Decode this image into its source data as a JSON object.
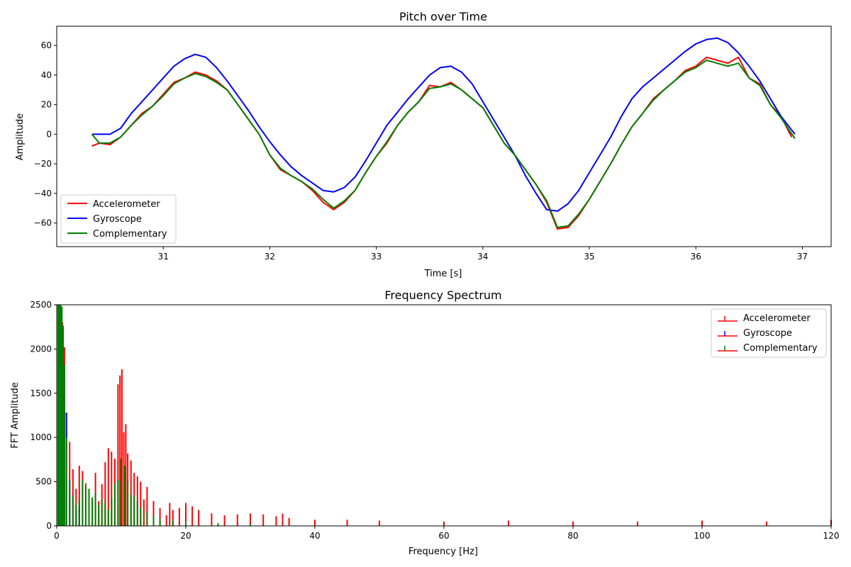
{
  "chart_data": [
    {
      "type": "line",
      "title": "Pitch over Time",
      "xlabel": "Time [s]",
      "ylabel": "Amplitude",
      "xlim": [
        30.0,
        37.27
      ],
      "ylim": [
        -76,
        73
      ],
      "xticks": [
        31,
        32,
        33,
        34,
        35,
        36,
        37
      ],
      "yticks": [
        -60,
        -40,
        -20,
        0,
        20,
        40,
        60
      ],
      "legend_position": "lower-left",
      "grid": false,
      "series": [
        {
          "name": "Accelerometer",
          "color": "#ff0000",
          "x": [
            30.33,
            30.4,
            30.5,
            30.6,
            30.7,
            30.8,
            30.9,
            31.0,
            31.1,
            31.2,
            31.3,
            31.4,
            31.5,
            31.6,
            31.7,
            31.8,
            31.9,
            32.0,
            32.1,
            32.2,
            32.3,
            32.4,
            32.5,
            32.6,
            32.7,
            32.8,
            32.9,
            33.0,
            33.1,
            33.2,
            33.3,
            33.4,
            33.5,
            33.6,
            33.7,
            33.8,
            33.9,
            34.0,
            34.1,
            34.2,
            34.3,
            34.4,
            34.5,
            34.6,
            34.7,
            34.8,
            34.9,
            35.0,
            35.1,
            35.2,
            35.3,
            35.4,
            35.5,
            35.6,
            35.7,
            35.8,
            35.9,
            36.0,
            36.1,
            36.2,
            36.3,
            36.4,
            36.5,
            36.6,
            36.7,
            36.8,
            36.9
          ],
          "values": [
            -8,
            -6,
            -7,
            -2,
            6,
            14,
            19,
            27,
            35,
            38,
            42,
            40,
            36,
            30,
            20,
            10,
            0,
            -14,
            -24,
            -28,
            -32,
            -38,
            -46,
            -51,
            -46,
            -38,
            -26,
            -15,
            -6,
            6,
            15,
            22,
            33,
            32,
            35,
            30,
            24,
            18,
            6,
            -6,
            -14,
            -24,
            -34,
            -46,
            -64,
            -63,
            -55,
            -44,
            -32,
            -20,
            -7,
            5,
            14,
            24,
            30,
            36,
            43,
            46,
            52,
            50,
            48,
            52,
            38,
            34,
            20,
            12,
            -2
          ]
        },
        {
          "name": "Gyroscope",
          "color": "#0000ff",
          "x": [
            30.33,
            30.5,
            30.6,
            30.7,
            30.8,
            30.9,
            31.0,
            31.1,
            31.2,
            31.3,
            31.4,
            31.5,
            31.6,
            31.7,
            31.8,
            31.9,
            32.0,
            32.1,
            32.2,
            32.3,
            32.4,
            32.5,
            32.6,
            32.7,
            32.8,
            32.9,
            33.0,
            33.1,
            33.2,
            33.3,
            33.4,
            33.5,
            33.6,
            33.7,
            33.8,
            33.9,
            34.0,
            34.1,
            34.2,
            34.3,
            34.4,
            34.5,
            34.6,
            34.7,
            34.8,
            34.9,
            35.0,
            35.1,
            35.2,
            35.3,
            35.4,
            35.5,
            35.6,
            35.7,
            35.8,
            35.9,
            36.0,
            36.1,
            36.2,
            36.3,
            36.4,
            36.5,
            36.6,
            36.7,
            36.8,
            36.93
          ],
          "values": [
            0,
            0,
            4,
            14,
            22,
            30,
            38,
            46,
            51,
            54,
            52,
            45,
            36,
            26,
            16,
            5,
            -5,
            -14,
            -22,
            -28,
            -33,
            -38,
            -39,
            -36,
            -29,
            -18,
            -6,
            6,
            15,
            24,
            32,
            40,
            45,
            46,
            42,
            34,
            22,
            10,
            -2,
            -14,
            -28,
            -40,
            -51,
            -52,
            -47,
            -38,
            -26,
            -14,
            -2,
            12,
            24,
            32,
            38,
            44,
            50,
            56,
            61,
            64,
            65,
            62,
            55,
            46,
            36,
            24,
            12,
            0
          ]
        },
        {
          "name": "Complementary",
          "color": "#008000",
          "x": [
            30.33,
            30.4,
            30.5,
            30.6,
            30.7,
            30.8,
            30.9,
            31.0,
            31.1,
            31.2,
            31.3,
            31.4,
            31.5,
            31.6,
            31.7,
            31.8,
            31.9,
            32.0,
            32.1,
            32.2,
            32.3,
            32.4,
            32.5,
            32.6,
            32.7,
            32.8,
            32.9,
            33.0,
            33.1,
            33.2,
            33.3,
            33.4,
            33.5,
            33.6,
            33.7,
            33.8,
            33.9,
            34.0,
            34.1,
            34.2,
            34.3,
            34.4,
            34.5,
            34.6,
            34.7,
            34.8,
            34.9,
            35.0,
            35.1,
            35.2,
            35.3,
            35.4,
            35.5,
            35.6,
            35.7,
            35.8,
            35.9,
            36.0,
            36.1,
            36.2,
            36.3,
            36.4,
            36.5,
            36.6,
            36.7,
            36.8,
            36.93
          ],
          "values": [
            0,
            -6,
            -6,
            -2,
            6,
            13,
            19,
            26,
            34,
            38,
            41,
            39,
            35,
            30,
            20,
            10,
            0,
            -14,
            -23,
            -28,
            -32,
            -37,
            -44,
            -50,
            -45,
            -38,
            -26,
            -15,
            -5,
            6,
            15,
            22,
            31,
            32,
            34,
            30,
            24,
            18,
            6,
            -6,
            -14,
            -24,
            -34,
            -45,
            -63,
            -62,
            -54,
            -44,
            -32,
            -20,
            -7,
            5,
            14,
            23,
            30,
            36,
            42,
            45,
            50,
            48,
            46,
            48,
            38,
            33,
            20,
            11,
            -3
          ]
        }
      ]
    },
    {
      "type": "bar",
      "title": "Frequency Spectrum",
      "xlabel": "Frequency [Hz]",
      "ylabel": "FFT Amplitude",
      "xlim": [
        0,
        120
      ],
      "ylim": [
        0,
        2500
      ],
      "xticks": [
        0,
        20,
        40,
        60,
        80,
        100,
        120
      ],
      "yticks": [
        0,
        500,
        1000,
        1500,
        2000,
        2500
      ],
      "legend_position": "upper-right",
      "grid": false,
      "series": [
        {
          "name": "Accelerometer",
          "color": "#ff0000",
          "x": [
            0.3,
            0.6,
            0.9,
            1.2,
            1.5,
            2.0,
            2.5,
            3.0,
            3.5,
            4.0,
            4.5,
            5.0,
            5.5,
            6.0,
            6.5,
            7.0,
            7.5,
            8.0,
            8.5,
            9.0,
            9.5,
            9.8,
            10.1,
            10.4,
            10.7,
            11.0,
            11.5,
            12.0,
            12.5,
            13.0,
            13.5,
            14.0,
            15.0,
            16.0,
            17.0,
            17.5,
            18.0,
            19.0,
            20.0,
            21.0,
            22.0,
            24.0,
            26.0,
            28.0,
            30.0,
            32.0,
            34.0,
            35.0,
            36.0,
            40.0,
            45.0,
            50.0,
            60.0,
            70.0,
            80.0,
            90.0,
            100.0,
            110.0,
            120.0
          ],
          "values": [
            2500,
            2500,
            2300,
            2020,
            1280,
            950,
            640,
            420,
            680,
            620,
            480,
            400,
            320,
            600,
            280,
            470,
            720,
            880,
            840,
            760,
            1600,
            1700,
            1770,
            1060,
            1150,
            820,
            740,
            600,
            560,
            500,
            300,
            440,
            280,
            200,
            120,
            260,
            180,
            200,
            260,
            220,
            180,
            140,
            120,
            130,
            140,
            130,
            110,
            140,
            90,
            70,
            70,
            60,
            50,
            60,
            50,
            50,
            60,
            50,
            70
          ]
        },
        {
          "name": "Gyroscope",
          "color": "#0000ff",
          "x": [
            0.3,
            0.6,
            0.9,
            1.2,
            1.5,
            2.0,
            3.0,
            3.5
          ],
          "values": [
            2500,
            2500,
            2200,
            1760,
            1280,
            520,
            180,
            220
          ]
        },
        {
          "name": "Complementary",
          "color": "#008000",
          "x": [
            0.2,
            0.4,
            0.6,
            0.8,
            1.0,
            1.2,
            1.5,
            2.0,
            2.5,
            3.0,
            3.5,
            4.0,
            4.5,
            5.0,
            5.5,
            6.0,
            6.5,
            7.0,
            7.5,
            8.0,
            8.5,
            9.0,
            9.5,
            10.0,
            10.5,
            11.0,
            11.5,
            12.0,
            12.5,
            13.0,
            14.0,
            15.0,
            16.0,
            18.0,
            20.0,
            25.0,
            30.0
          ],
          "values": [
            2500,
            2500,
            2500,
            2480,
            2260,
            1820,
            1000,
            520,
            340,
            240,
            300,
            520,
            460,
            420,
            320,
            380,
            240,
            300,
            260,
            180,
            320,
            480,
            520,
            760,
            680,
            500,
            360,
            340,
            280,
            200,
            160,
            120,
            80,
            60,
            40,
            30,
            20
          ]
        }
      ]
    }
  ]
}
